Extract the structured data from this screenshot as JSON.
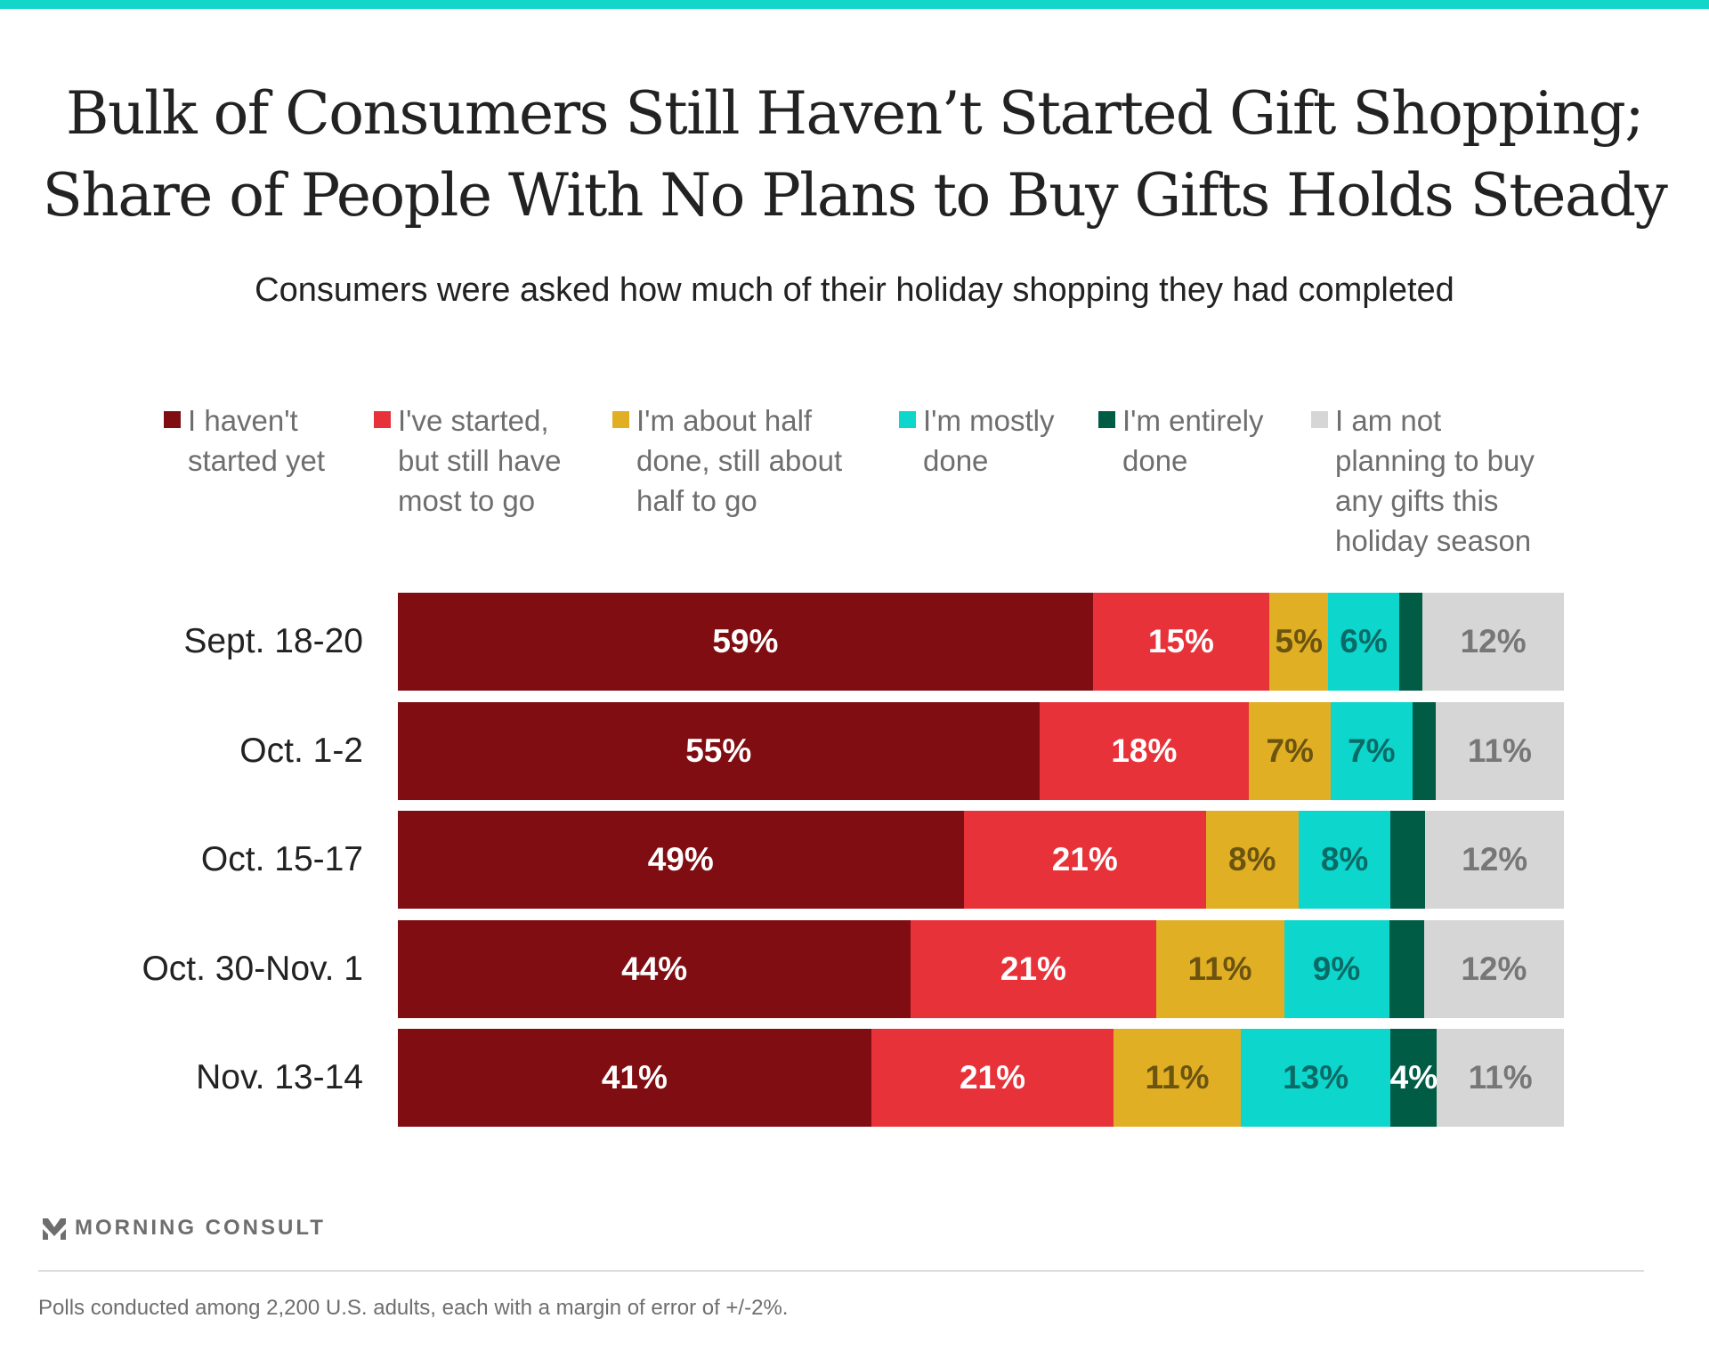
{
  "title_lines": [
    "Bulk of Consumers Still Haven’t Started Gift Shopping;",
    "Share of People With No Plans to Buy Gifts Holds Steady"
  ],
  "subtitle": "Consumers were asked how much of their holiday shopping they had completed",
  "footer": {
    "logo": "MORNING CONSULT",
    "note": "Polls conducted among 2,200 U.S. adults, each with a margin of error of +/-2%."
  },
  "chart_data": {
    "type": "bar",
    "orientation": "horizontal",
    "stacked": true,
    "categories": [
      "Sept. 18-20",
      "Oct. 1-2",
      "Oct. 15-17",
      "Oct. 30-Nov. 1",
      "Nov. 13-14"
    ],
    "legend_placement": "top",
    "series": [
      {
        "name": "I haven't\nstarted yet",
        "color": "#7f0d11",
        "label_color": "#ffffff",
        "values": [
          59,
          55,
          49,
          44,
          41
        ],
        "labels": [
          "59%",
          "55%",
          "49%",
          "44%",
          "41%"
        ]
      },
      {
        "name": "I've started,\nbut still have\nmost to go",
        "color": "#e8323a",
        "label_color": "#ffffff",
        "values": [
          15,
          18,
          21,
          21,
          21
        ],
        "labels": [
          "15%",
          "18%",
          "21%",
          "21%",
          "21%"
        ]
      },
      {
        "name": "I'm about half\ndone, still about\nhalf to go",
        "color": "#e1af24",
        "label_color": "#6b5410",
        "values": [
          5,
          7,
          8,
          11,
          11
        ],
        "labels": [
          "5%",
          "7%",
          "8%",
          "11%",
          "11%"
        ]
      },
      {
        "name": "I'm mostly\ndone",
        "color": "#0dd6cc",
        "label_color": "#0a6b66",
        "values": [
          6,
          7,
          8,
          9,
          13
        ],
        "labels": [
          "6%",
          "7%",
          "8%",
          "9%",
          "13%"
        ]
      },
      {
        "name": "I'm entirely\ndone",
        "color": "#005c45",
        "label_color": "#ffffff",
        "values": [
          2,
          2,
          3,
          3,
          4
        ],
        "labels": [
          "",
          "",
          "",
          "",
          "4%"
        ]
      },
      {
        "name": "I am not\nplanning to buy\nany gifts this\nholiday season",
        "color": "#d6d6d6",
        "label_color": "#777777",
        "values": [
          12,
          11,
          12,
          12,
          11
        ],
        "labels": [
          "12%",
          "11%",
          "12%",
          "12%",
          "11%"
        ]
      }
    ]
  }
}
